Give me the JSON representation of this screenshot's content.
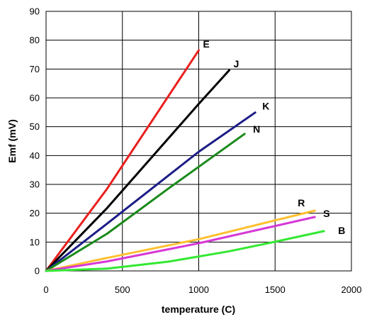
{
  "chart_data": {
    "type": "line",
    "title": "",
    "xlabel": "temperature (C)",
    "ylabel": "Emf (mV)",
    "xlim": [
      0,
      2000
    ],
    "ylim": [
      0,
      90
    ],
    "xticks": [
      0,
      500,
      1000,
      1500,
      2000
    ],
    "yticks": [
      0,
      10,
      20,
      30,
      40,
      50,
      60,
      70,
      80,
      90
    ],
    "grid": true,
    "legend": "none",
    "series": [
      {
        "name": "E",
        "color": "#e8201d",
        "x": [
          0,
          400,
          1000
        ],
        "y": [
          0,
          28.5,
          76.5
        ]
      },
      {
        "name": "J",
        "color": "#000000",
        "x": [
          0,
          400,
          1000,
          1200
        ],
        "y": [
          0,
          21.8,
          57.9,
          69.6
        ]
      },
      {
        "name": "K",
        "color": "#1c1c86",
        "x": [
          0,
          400,
          1000,
          1370
        ],
        "y": [
          0,
          16.4,
          41.3,
          54.9
        ]
      },
      {
        "name": "N",
        "color": "#1a8a1a",
        "x": [
          0,
          400,
          800,
          1300
        ],
        "y": [
          0,
          12.9,
          28.5,
          47.5
        ]
      },
      {
        "name": "R",
        "color": "#ffc030",
        "x": [
          0,
          400,
          1000,
          1760
        ],
        "y": [
          0,
          4.5,
          11.0,
          20.9
        ]
      },
      {
        "name": "S",
        "color": "#d639d6",
        "x": [
          0,
          400,
          1000,
          1760
        ],
        "y": [
          0,
          3.3,
          9.6,
          18.7
        ]
      },
      {
        "name": "B",
        "color": "#33e833",
        "x": [
          0,
          400,
          800,
          1200,
          1500,
          1820
        ],
        "y": [
          0,
          0.8,
          3.2,
          6.8,
          10.1,
          13.8
        ]
      }
    ]
  }
}
